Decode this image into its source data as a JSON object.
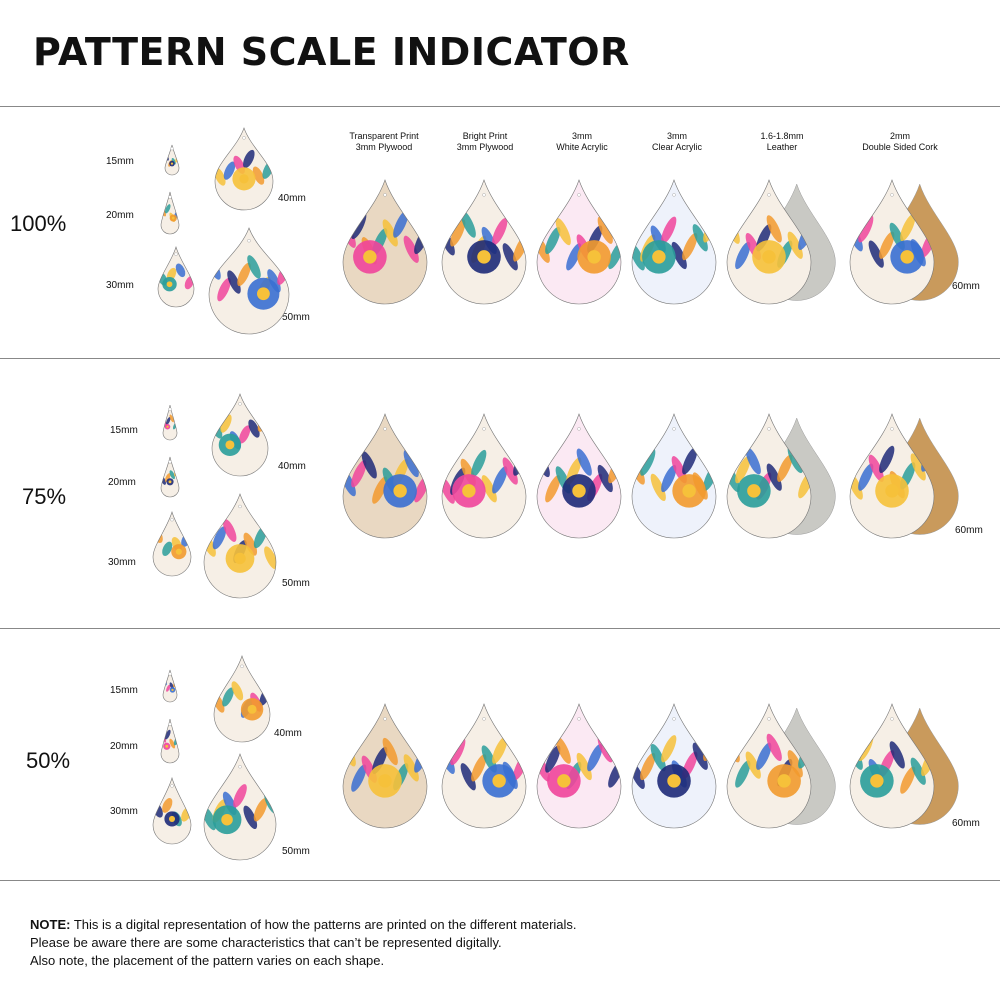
{
  "title": "PATTERN SCALE INDICATOR",
  "materials": [
    {
      "line1": "Transparent Print",
      "line2": "3mm Plywood"
    },
    {
      "line1": "Bright Print",
      "line2": "3mm Plywood"
    },
    {
      "line1": "3mm",
      "line2": "White Acrylic"
    },
    {
      "line1": "3mm",
      "line2": "Clear Acrylic"
    },
    {
      "line1": "1.6-1.8mm",
      "line2": "Leather"
    },
    {
      "line1": "2mm",
      "line2": "Double Sided Cork"
    }
  ],
  "rows": [
    {
      "scale": "100%",
      "sizes": [
        "15mm",
        "20mm",
        "30mm",
        "40mm",
        "50mm"
      ],
      "large_size": "60mm"
    },
    {
      "scale": "75%",
      "sizes": [
        "15mm",
        "20mm",
        "30mm",
        "40mm",
        "50mm"
      ],
      "large_size": "60mm"
    },
    {
      "scale": "50%",
      "sizes": [
        "15mm",
        "20mm",
        "30mm",
        "40mm",
        "50mm"
      ],
      "large_size": "60mm"
    }
  ],
  "note": {
    "label": "NOTE:",
    "line1": " This is a digital representation of how the patterns are printed on the different materials.",
    "line2": "Please be aware there are some characteristics that can’t be represented digitally.",
    "line3": "Also note, the placement of the pattern varies on each shape."
  },
  "colors": {
    "pink": "#f0459b",
    "navy": "#1e2a78",
    "orange": "#f29a2e",
    "teal": "#2a9d9a",
    "yellow": "#f6c13a",
    "blue": "#3a6fd1",
    "cream": "#f6efe6",
    "leather": "#c9c9c4",
    "cork": "#c99a5c",
    "wood": "#a9784a"
  }
}
